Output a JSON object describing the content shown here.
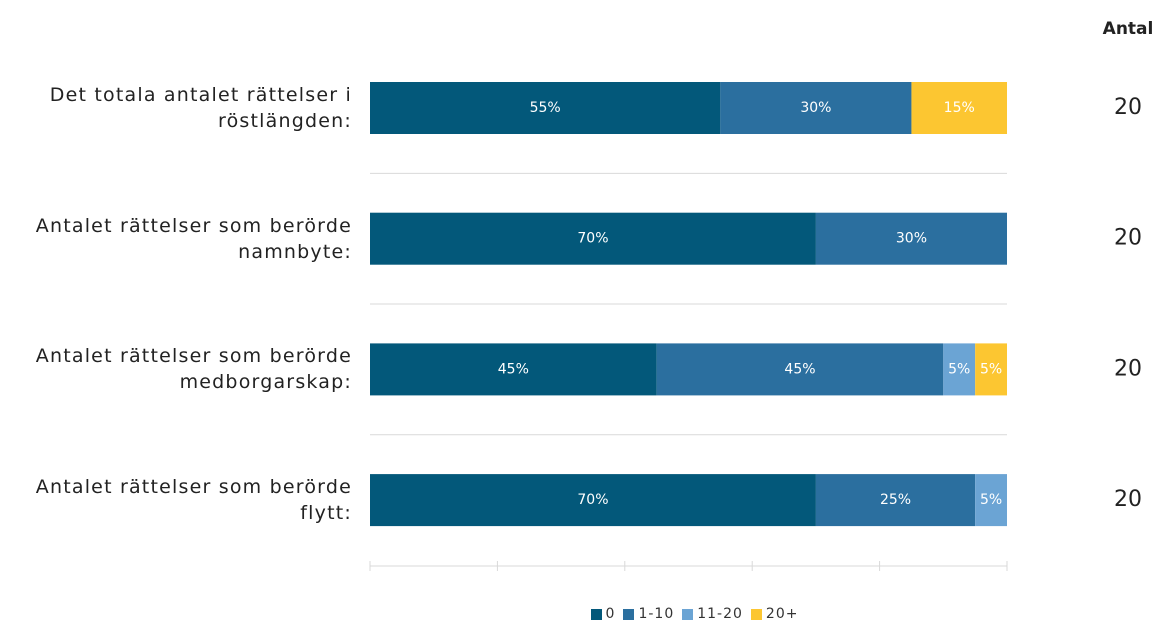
{
  "chart_data": {
    "type": "bar",
    "orientation": "horizontal",
    "stacked": true,
    "categories": [
      "Det totala antalet rättelser i röstlängden:",
      "Antalet rättelser som berörde namnbyte:",
      "Antalet rättelser som berörde medborgarskap:",
      "Antalet rättelser som berörde flytt:"
    ],
    "series": [
      {
        "name": "0",
        "color": "#03587a",
        "values": [
          55,
          70,
          45,
          70
        ],
        "value_labels": [
          "55%",
          "70%",
          "45%",
          "70%"
        ]
      },
      {
        "name": "1-10",
        "color": "#2b6f9f",
        "values": [
          30,
          30,
          45,
          25
        ],
        "value_labels": [
          "30%",
          "30%",
          "45%",
          "25%"
        ]
      },
      {
        "name": "11-20",
        "color": "#6ba4d4",
        "values": [
          0,
          0,
          5,
          5
        ],
        "value_labels": [
          null,
          null,
          "5%",
          "5%"
        ]
      },
      {
        "name": "20+",
        "color": "#fcc631",
        "values": [
          15,
          0,
          5,
          0
        ],
        "value_labels": [
          "15%",
          null,
          "5%",
          null
        ]
      }
    ],
    "xlim": [
      0,
      100
    ],
    "xticks": [
      0,
      20,
      40,
      60,
      80,
      100
    ],
    "counts_title": "Antal",
    "counts": [
      20,
      20,
      20,
      20
    ],
    "legend": "bottom"
  }
}
